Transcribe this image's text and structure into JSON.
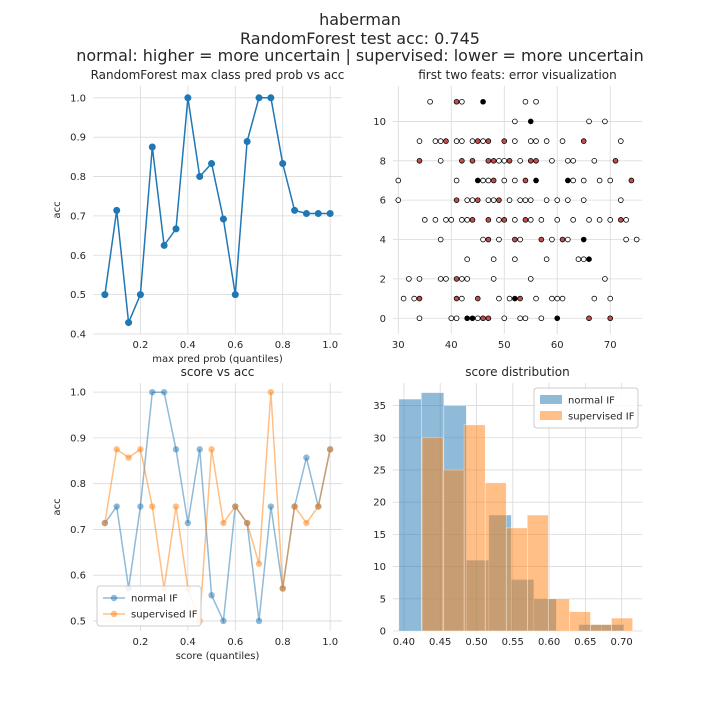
{
  "figure": {
    "title_lines": [
      "haberman",
      "RandomForest test acc: 0.745",
      "normal: higher = more uncertain | supervised: lower = more uncertain"
    ]
  },
  "chart_data": [
    {
      "type": "line",
      "title": "RandomForest max class pred prob vs acc",
      "xlabel": "max pred prob (quantiles)",
      "ylabel": "acc",
      "xlim": [
        0.0,
        1.05
      ],
      "ylim": [
        0.4,
        1.03
      ],
      "xticks": [
        0.2,
        0.4,
        0.6,
        0.8,
        1.0
      ],
      "xtick_labels": [
        "0.2",
        "0.4",
        "0.6",
        "0.8",
        "1.0"
      ],
      "yticks": [
        0.4,
        0.5,
        0.6,
        0.7,
        0.8,
        0.9,
        1.0
      ],
      "ytick_labels": [
        "0.4",
        "0.5",
        "0.6",
        "0.7",
        "0.8",
        "0.9",
        "1.0"
      ],
      "grid": true,
      "series": [
        {
          "color": "#1f77b4",
          "x": [
            0.05,
            0.1,
            0.15,
            0.2,
            0.25,
            0.3,
            0.35,
            0.4,
            0.45,
            0.5,
            0.55,
            0.6,
            0.65,
            0.7,
            0.75,
            0.8,
            0.85,
            0.9,
            0.95,
            1.0
          ],
          "y": [
            0.5,
            0.714,
            0.429,
            0.5,
            0.875,
            0.625,
            0.667,
            1.0,
            0.8,
            0.833,
            0.692,
            0.5,
            0.889,
            1.0,
            1.0,
            0.833,
            0.714,
            0.706,
            0.706,
            0.706
          ]
        }
      ]
    },
    {
      "type": "scatter",
      "title": "first two feats: error visualization",
      "xlabel": "",
      "ylabel": "",
      "xlim": [
        29,
        76
      ],
      "ylim": [
        -0.8,
        11.8
      ],
      "xticks": [
        30,
        40,
        50,
        60,
        70
      ],
      "xtick_labels": [
        "30",
        "40",
        "50",
        "60",
        "70"
      ],
      "yticks": [
        0,
        2,
        4,
        6,
        8,
        10
      ],
      "ytick_labels": [
        "0",
        "2",
        "4",
        "6",
        "8",
        "10"
      ],
      "grid": true,
      "point_styles": {
        "w": {
          "fill": "#ffffff",
          "meaning": "correct"
        },
        "r": {
          "fill": "#c44e52",
          "meaning": "misclassified"
        },
        "k": {
          "fill": "#000000",
          "meaning": "other"
        }
      },
      "points": [
        [
          30,
          7,
          "w"
        ],
        [
          30,
          6,
          "w"
        ],
        [
          31,
          1,
          "w"
        ],
        [
          32,
          2,
          "w"
        ],
        [
          33,
          1,
          "w"
        ],
        [
          34,
          9,
          "w"
        ],
        [
          34,
          8,
          "r"
        ],
        [
          34,
          0,
          "w"
        ],
        [
          34,
          2,
          "w"
        ],
        [
          34,
          1,
          "r"
        ],
        [
          35,
          5,
          "w"
        ],
        [
          36,
          11,
          "w"
        ],
        [
          37,
          5,
          "w"
        ],
        [
          37,
          9,
          "w"
        ],
        [
          38,
          4,
          "w"
        ],
        [
          38,
          8,
          "w"
        ],
        [
          38,
          9,
          "w"
        ],
        [
          38,
          2,
          "w"
        ],
        [
          39,
          5,
          "w"
        ],
        [
          39,
          9,
          "r"
        ],
        [
          39,
          2,
          "w"
        ],
        [
          40,
          0,
          "w"
        ],
        [
          40,
          5,
          "w"
        ],
        [
          41,
          0,
          "w"
        ],
        [
          41,
          6,
          "r"
        ],
        [
          41,
          7,
          "w"
        ],
        [
          41,
          9,
          "w"
        ],
        [
          41,
          2,
          "r"
        ],
        [
          41,
          1,
          "r"
        ],
        [
          41,
          11,
          "r"
        ],
        [
          42,
          5,
          "w"
        ],
        [
          42,
          9,
          "w"
        ],
        [
          42,
          11,
          "w"
        ],
        [
          42,
          1,
          "w"
        ],
        [
          42,
          2,
          "w"
        ],
        [
          42,
          8,
          "r"
        ],
        [
          43,
          5,
          "w"
        ],
        [
          43,
          6,
          "w"
        ],
        [
          43,
          0,
          "k"
        ],
        [
          43,
          2,
          "w"
        ],
        [
          43,
          3,
          "w"
        ],
        [
          44,
          0,
          "k"
        ],
        [
          44,
          6,
          "w"
        ],
        [
          44,
          9,
          "w"
        ],
        [
          44,
          8,
          "r"
        ],
        [
          44,
          5,
          "r"
        ],
        [
          45,
          9,
          "r"
        ],
        [
          45,
          7,
          "k"
        ],
        [
          45,
          6,
          "r"
        ],
        [
          45,
          1,
          "r"
        ],
        [
          45,
          0,
          "w"
        ],
        [
          46,
          0,
          "r"
        ],
        [
          46,
          11,
          "k"
        ],
        [
          46,
          7,
          "w"
        ],
        [
          46,
          4,
          "w"
        ],
        [
          46,
          9,
          "w"
        ],
        [
          47,
          0,
          "r"
        ],
        [
          47,
          4,
          "r"
        ],
        [
          47,
          5,
          "r"
        ],
        [
          47,
          6,
          "w"
        ],
        [
          47,
          7,
          "w"
        ],
        [
          47,
          8,
          "r"
        ],
        [
          47,
          9,
          "r"
        ],
        [
          48,
          8,
          "r"
        ],
        [
          48,
          6,
          "w"
        ],
        [
          48,
          3,
          "w"
        ],
        [
          48,
          2,
          "w"
        ],
        [
          48,
          7,
          "r"
        ],
        [
          49,
          1,
          "w"
        ],
        [
          49,
          4,
          "w"
        ],
        [
          49,
          5,
          "w"
        ],
        [
          49,
          6,
          "r"
        ],
        [
          49,
          8,
          "w"
        ],
        [
          50,
          0,
          "w"
        ],
        [
          50,
          5,
          "r"
        ],
        [
          50,
          9,
          "r"
        ],
        [
          50,
          7,
          "w"
        ],
        [
          50,
          8,
          "w"
        ],
        [
          51,
          1,
          "w"
        ],
        [
          51,
          6,
          "w"
        ],
        [
          51,
          8,
          "r"
        ],
        [
          52,
          3,
          "w"
        ],
        [
          52,
          4,
          "r"
        ],
        [
          52,
          5,
          "w"
        ],
        [
          52,
          9,
          "w"
        ],
        [
          52,
          10,
          "w"
        ],
        [
          52,
          1,
          "k"
        ],
        [
          52,
          7,
          "w"
        ],
        [
          53,
          0,
          "w"
        ],
        [
          53,
          1,
          "r"
        ],
        [
          53,
          6,
          "w"
        ],
        [
          53,
          8,
          "w"
        ],
        [
          53,
          4,
          "w"
        ],
        [
          54,
          5,
          "r"
        ],
        [
          54,
          0,
          "w"
        ],
        [
          54,
          7,
          "r"
        ],
        [
          54,
          6,
          "w"
        ],
        [
          54,
          11,
          "w"
        ],
        [
          55,
          2,
          "w"
        ],
        [
          55,
          5,
          "w"
        ],
        [
          55,
          8,
          "r"
        ],
        [
          55,
          9,
          "w"
        ],
        [
          55,
          10,
          "k"
        ],
        [
          55,
          6,
          "w"
        ],
        [
          56,
          1,
          "w"
        ],
        [
          56,
          7,
          "k"
        ],
        [
          56,
          8,
          "r"
        ],
        [
          56,
          9,
          "w"
        ],
        [
          56,
          11,
          "w"
        ],
        [
          57,
          4,
          "r"
        ],
        [
          57,
          0,
          "w"
        ],
        [
          57,
          5,
          "w"
        ],
        [
          58,
          3,
          "w"
        ],
        [
          58,
          6,
          "w"
        ],
        [
          58,
          9,
          "w"
        ],
        [
          59,
          1,
          "w"
        ],
        [
          59,
          4,
          "w"
        ],
        [
          59,
          8,
          "w"
        ],
        [
          60,
          0,
          "k"
        ],
        [
          60,
          1,
          "w"
        ],
        [
          60,
          5,
          "w"
        ],
        [
          60,
          6,
          "w"
        ],
        [
          61,
          1,
          "w"
        ],
        [
          61,
          4,
          "r"
        ],
        [
          61,
          9,
          "w"
        ],
        [
          62,
          7,
          "k"
        ],
        [
          62,
          8,
          "w"
        ],
        [
          62,
          6,
          "w"
        ],
        [
          62,
          4,
          "w"
        ],
        [
          63,
          5,
          "w"
        ],
        [
          63,
          8,
          "w"
        ],
        [
          63,
          7,
          "w"
        ],
        [
          64,
          3,
          "w"
        ],
        [
          65,
          3,
          "w"
        ],
        [
          65,
          9,
          "r"
        ],
        [
          65,
          6,
          "w"
        ],
        [
          65,
          7,
          "w"
        ],
        [
          65,
          4,
          "k"
        ],
        [
          66,
          0,
          "r"
        ],
        [
          66,
          3,
          "k"
        ],
        [
          66,
          10,
          "w"
        ],
        [
          66,
          5,
          "w"
        ],
        [
          67,
          8,
          "w"
        ],
        [
          67,
          1,
          "w"
        ],
        [
          68,
          5,
          "w"
        ],
        [
          68,
          7,
          "w"
        ],
        [
          69,
          2,
          "w"
        ],
        [
          69,
          10,
          "w"
        ],
        [
          70,
          0,
          "r"
        ],
        [
          70,
          1,
          "w"
        ],
        [
          70,
          7,
          "w"
        ],
        [
          70,
          5,
          "w"
        ],
        [
          71,
          8,
          "r"
        ],
        [
          72,
          5,
          "r"
        ],
        [
          72,
          6,
          "w"
        ],
        [
          72,
          9,
          "w"
        ],
        [
          73,
          4,
          "w"
        ],
        [
          73,
          5,
          "w"
        ],
        [
          74,
          7,
          "r"
        ],
        [
          75,
          4,
          "w"
        ]
      ]
    },
    {
      "type": "line",
      "title": "score vs acc",
      "xlabel": "score (quantiles)",
      "ylabel": "acc",
      "xlim": [
        0.0,
        1.05
      ],
      "ylim": [
        0.478,
        1.02
      ],
      "xticks": [
        0.2,
        0.4,
        0.6,
        0.8,
        1.0
      ],
      "xtick_labels": [
        "0.2",
        "0.4",
        "0.6",
        "0.8",
        "1.0"
      ],
      "yticks": [
        0.5,
        0.6,
        0.7,
        0.8,
        0.9,
        1.0
      ],
      "ytick_labels": [
        "0.5",
        "0.6",
        "0.7",
        "0.8",
        "0.9",
        "1.0"
      ],
      "grid": true,
      "legend": "lower-left",
      "series": [
        {
          "name": "normal IF",
          "color": "#1f77b4",
          "x": [
            0.05,
            0.1,
            0.15,
            0.2,
            0.25,
            0.3,
            0.35,
            0.4,
            0.45,
            0.5,
            0.55,
            0.6,
            0.65,
            0.7,
            0.75,
            0.8,
            0.85,
            0.9,
            0.95,
            1.0
          ],
          "y": [
            0.714,
            0.75,
            0.571,
            0.75,
            1.0,
            1.0,
            0.875,
            0.714,
            0.875,
            0.556,
            0.5,
            0.75,
            0.714,
            0.5,
            0.75,
            0.571,
            0.75,
            0.857,
            0.75,
            0.875
          ]
        },
        {
          "name": "supervised IF",
          "color": "#ff7f0e",
          "x": [
            0.05,
            0.1,
            0.15,
            0.2,
            0.25,
            0.3,
            0.35,
            0.4,
            0.45,
            0.5,
            0.55,
            0.6,
            0.65,
            0.7,
            0.75,
            0.8,
            0.85,
            0.9,
            0.95,
            1.0
          ],
          "y": [
            0.714,
            0.875,
            0.857,
            0.875,
            0.75,
            0.571,
            0.75,
            0.571,
            0.5,
            0.875,
            0.714,
            0.75,
            0.714,
            0.625,
            1.0,
            0.571,
            0.75,
            0.714,
            0.75,
            0.875
          ]
        }
      ]
    },
    {
      "type": "bar",
      "subtype": "histogram",
      "title": "score distribution",
      "xlabel": "",
      "ylabel": "",
      "xlim": [
        0.385,
        0.728
      ],
      "ylim": [
        0,
        38.5
      ],
      "xticks": [
        0.4,
        0.45,
        0.5,
        0.55,
        0.6,
        0.65,
        0.7
      ],
      "xtick_labels": [
        "0.40",
        "0.45",
        "0.50",
        "0.55",
        "0.60",
        "0.65",
        "0.70"
      ],
      "yticks": [
        0,
        5,
        10,
        15,
        20,
        25,
        30,
        35
      ],
      "ytick_labels": [
        "0",
        "5",
        "10",
        "15",
        "20",
        "25",
        "30",
        "35"
      ],
      "grid": true,
      "legend": "top-right",
      "series": [
        {
          "name": "normal IF",
          "color": "#1f77b4",
          "bin_edges": [
            0.393,
            0.424,
            0.455,
            0.486,
            0.517,
            0.548,
            0.579,
            0.61,
            0.641,
            0.672,
            0.703
          ],
          "values": [
            36,
            37,
            35,
            11,
            18,
            8,
            5,
            0,
            1,
            1
          ]
        },
        {
          "name": "supervised IF",
          "color": "#ff7f0e",
          "bin_edges": [
            0.425,
            0.454,
            0.483,
            0.512,
            0.541,
            0.57,
            0.599,
            0.628,
            0.657,
            0.686,
            0.715
          ],
          "values": [
            30,
            25,
            32,
            23,
            16,
            18,
            5,
            3,
            1,
            2
          ]
        }
      ]
    }
  ]
}
